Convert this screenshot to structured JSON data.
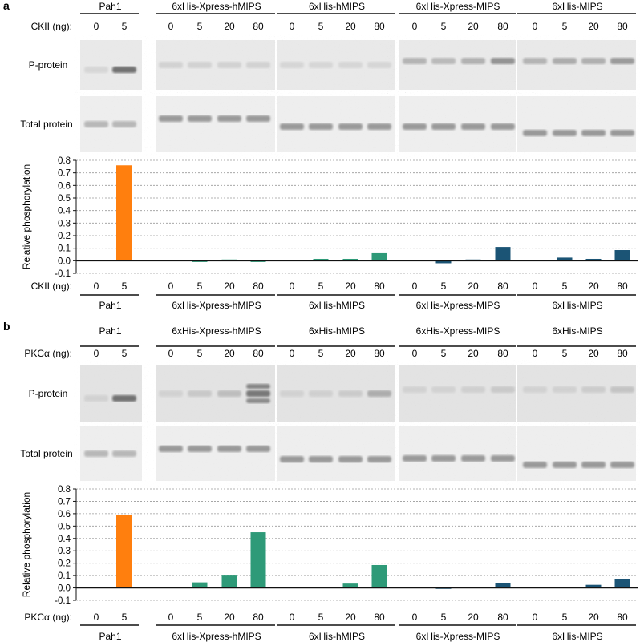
{
  "panels": [
    {
      "letter": "a",
      "kinase_label": "CKII (ng):",
      "row_labels": {
        "p_protein": "P-protein",
        "total_protein": "Total protein"
      },
      "ylabel": "Relative phosphorylation",
      "colors": {
        "pah1": "#ff7f0e",
        "green": "#2e9a78",
        "blue": "#1b5475"
      },
      "groups": [
        {
          "name": "Pah1",
          "color": "#ff7f0e",
          "doses": [
            "0",
            "5"
          ],
          "values": [
            0.0,
            0.76
          ]
        },
        {
          "name": "6xHis-Xpress-hMIPS",
          "color": "#2e9a78",
          "doses": [
            "0",
            "5",
            "20",
            "80"
          ],
          "values": [
            0.0,
            -0.01,
            0.01,
            -0.01
          ]
        },
        {
          "name": "6xHis-hMIPS",
          "color": "#2e9a78",
          "doses": [
            "0",
            "5",
            "20",
            "80"
          ],
          "values": [
            0.0,
            0.015,
            0.015,
            0.06
          ]
        },
        {
          "name": "6xHis-Xpress-MIPS",
          "color": "#1b5475",
          "doses": [
            "0",
            "5",
            "20",
            "80"
          ],
          "values": [
            0.0,
            -0.02,
            0.01,
            0.11
          ]
        },
        {
          "name": "6xHis-MIPS",
          "color": "#1b5475",
          "doses": [
            "0",
            "5",
            "20",
            "80"
          ],
          "values": [
            0.0,
            0.025,
            0.015,
            0.085
          ]
        }
      ],
      "ylim": [
        -0.1,
        0.8
      ],
      "yticks": [
        "0.8",
        "0.7",
        "0.6",
        "0.5",
        "0.4",
        "0.3",
        "0.2",
        "0.1",
        "0.0",
        "-0.1"
      ]
    },
    {
      "letter": "b",
      "kinase_label": "PKCα (ng):",
      "row_labels": {
        "p_protein": "P-protein",
        "total_protein": "Total protein"
      },
      "ylabel": "Relative phosphorylation",
      "colors": {
        "pah1": "#ff7f0e",
        "green": "#2e9a78",
        "blue": "#1b5475"
      },
      "groups": [
        {
          "name": "Pah1",
          "color": "#ff7f0e",
          "doses": [
            "0",
            "5"
          ],
          "values": [
            0.0,
            0.59
          ]
        },
        {
          "name": "6xHis-Xpress-hMIPS",
          "color": "#2e9a78",
          "doses": [
            "0",
            "5",
            "20",
            "80"
          ],
          "values": [
            0.0,
            0.045,
            0.1,
            0.45
          ]
        },
        {
          "name": "6xHis-hMIPS",
          "color": "#2e9a78",
          "doses": [
            "0",
            "5",
            "20",
            "80"
          ],
          "values": [
            0.0,
            0.01,
            0.035,
            0.185
          ]
        },
        {
          "name": "6xHis-Xpress-MIPS",
          "color": "#1b5475",
          "doses": [
            "0",
            "5",
            "20",
            "80"
          ],
          "values": [
            0.0,
            -0.005,
            0.01,
            0.04
          ]
        },
        {
          "name": "6xHis-MIPS",
          "color": "#1b5475",
          "doses": [
            "0",
            "5",
            "20",
            "80"
          ],
          "values": [
            0.0,
            0.005,
            0.025,
            0.07
          ]
        }
      ],
      "ylim": [
        -0.1,
        0.8
      ],
      "yticks": [
        "0.8",
        "0.7",
        "0.6",
        "0.5",
        "0.4",
        "0.3",
        "0.2",
        "0.1",
        "0.0",
        "-0.1"
      ]
    }
  ],
  "chart_data": [
    {
      "type": "bar",
      "title": "a",
      "xlabel": "CKII (ng):",
      "ylabel": "Relative phosphorylation",
      "ylim": [
        -0.1,
        0.8
      ],
      "categories": [
        "Pah1 0",
        "Pah1 5",
        "6xHis-Xpress-hMIPS 0",
        "6xHis-Xpress-hMIPS 5",
        "6xHis-Xpress-hMIPS 20",
        "6xHis-Xpress-hMIPS 80",
        "6xHis-hMIPS 0",
        "6xHis-hMIPS 5",
        "6xHis-hMIPS 20",
        "6xHis-hMIPS 80",
        "6xHis-Xpress-MIPS 0",
        "6xHis-Xpress-MIPS 5",
        "6xHis-Xpress-MIPS 20",
        "6xHis-Xpress-MIPS 80",
        "6xHis-MIPS 0",
        "6xHis-MIPS 5",
        "6xHis-MIPS 20",
        "6xHis-MIPS 80"
      ],
      "values": [
        0.0,
        0.76,
        0.0,
        -0.01,
        0.01,
        -0.01,
        0.0,
        0.015,
        0.015,
        0.06,
        0.0,
        -0.02,
        0.01,
        0.11,
        0.0,
        0.025,
        0.015,
        0.085
      ]
    },
    {
      "type": "bar",
      "title": "b",
      "xlabel": "PKCα (ng):",
      "ylabel": "Relative phosphorylation",
      "ylim": [
        -0.1,
        0.8
      ],
      "categories": [
        "Pah1 0",
        "Pah1 5",
        "6xHis-Xpress-hMIPS 0",
        "6xHis-Xpress-hMIPS 5",
        "6xHis-Xpress-hMIPS 20",
        "6xHis-Xpress-hMIPS 80",
        "6xHis-hMIPS 0",
        "6xHis-hMIPS 5",
        "6xHis-hMIPS 20",
        "6xHis-hMIPS 80",
        "6xHis-Xpress-MIPS 0",
        "6xHis-Xpress-MIPS 5",
        "6xHis-Xpress-MIPS 20",
        "6xHis-Xpress-MIPS 80",
        "6xHis-MIPS 0",
        "6xHis-MIPS 5",
        "6xHis-MIPS 20",
        "6xHis-MIPS 80"
      ],
      "values": [
        0.0,
        0.59,
        0.0,
        0.045,
        0.1,
        0.45,
        0.0,
        0.01,
        0.035,
        0.185,
        0.0,
        -0.005,
        0.01,
        0.04,
        0.0,
        0.005,
        0.025,
        0.07
      ]
    }
  ]
}
